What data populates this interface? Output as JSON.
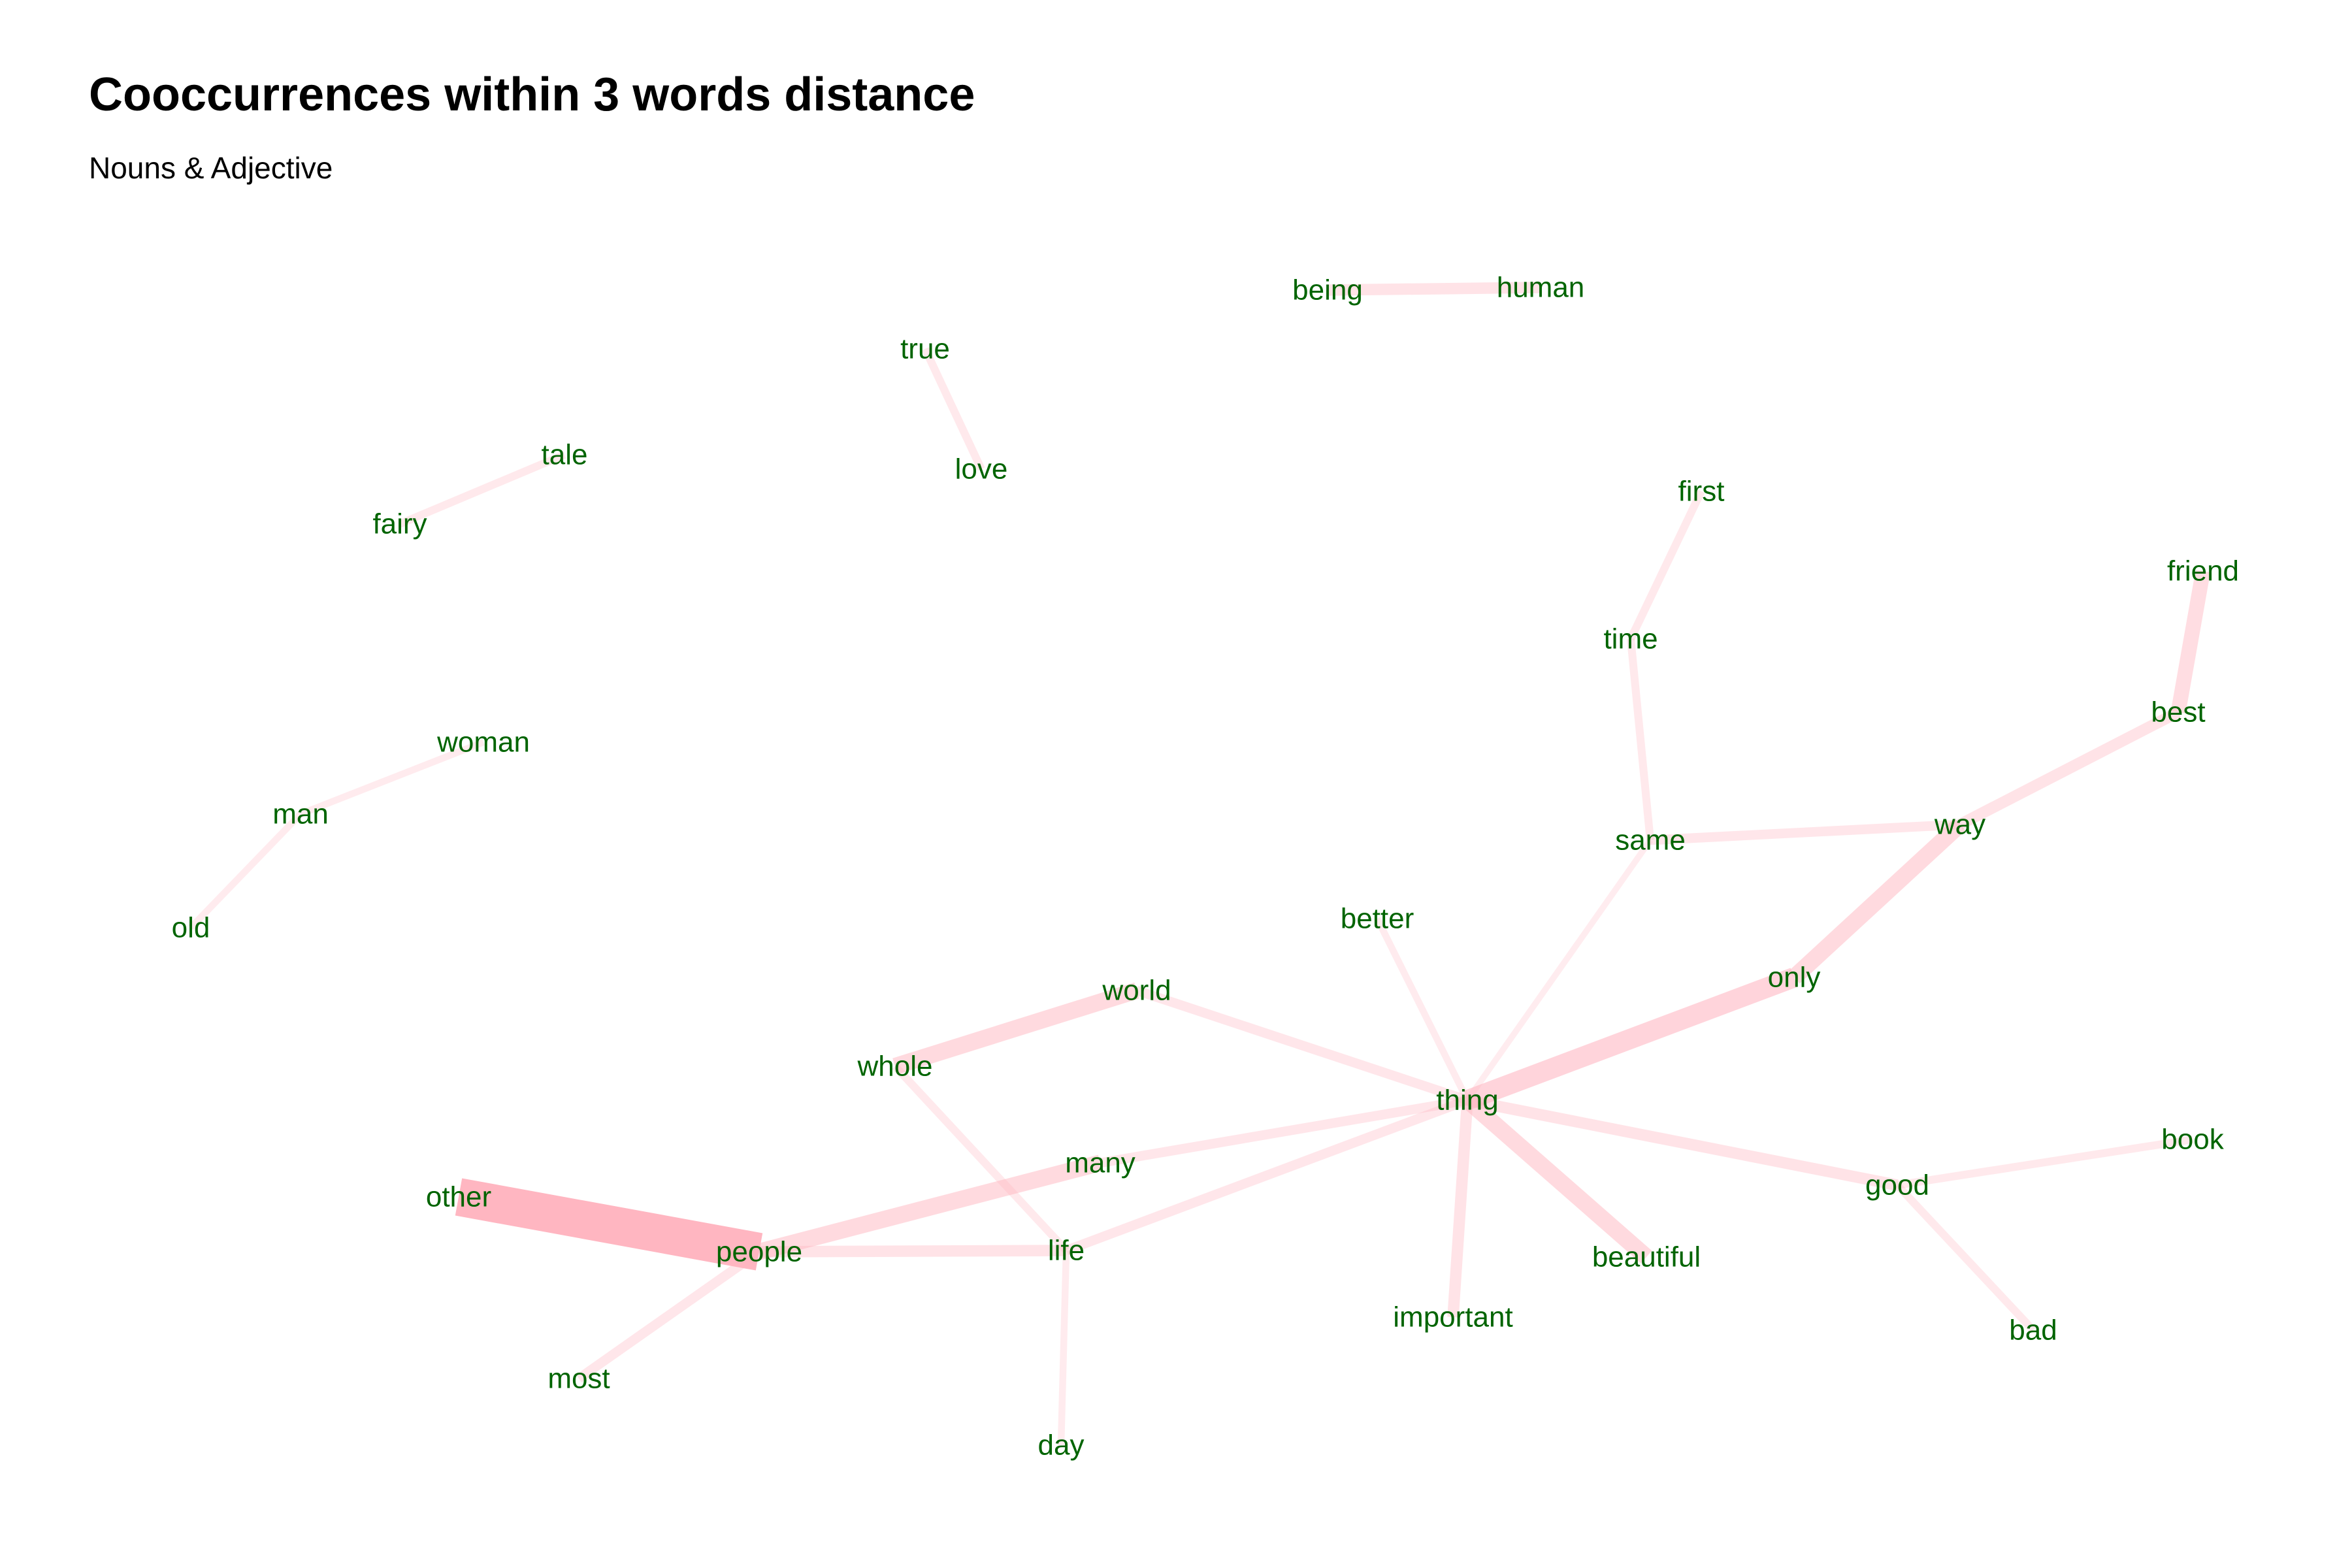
{
  "title": "Cooccurrences within 3 words distance",
  "subtitle": "Nouns & Adjective",
  "colors": {
    "edge": "#ffb6c1",
    "label": "#006400",
    "title": "#000000"
  },
  "nodes": [
    {
      "id": "being"
    },
    {
      "id": "human"
    },
    {
      "id": "true"
    },
    {
      "id": "love"
    },
    {
      "id": "tale"
    },
    {
      "id": "fairy"
    },
    {
      "id": "first"
    },
    {
      "id": "friend"
    },
    {
      "id": "time"
    },
    {
      "id": "best"
    },
    {
      "id": "woman"
    },
    {
      "id": "man"
    },
    {
      "id": "same"
    },
    {
      "id": "way"
    },
    {
      "id": "old"
    },
    {
      "id": "better"
    },
    {
      "id": "only"
    },
    {
      "id": "world"
    },
    {
      "id": "whole"
    },
    {
      "id": "thing"
    },
    {
      "id": "book"
    },
    {
      "id": "many"
    },
    {
      "id": "good"
    },
    {
      "id": "other"
    },
    {
      "id": "people"
    },
    {
      "id": "life"
    },
    {
      "id": "beautiful"
    },
    {
      "id": "important"
    },
    {
      "id": "bad"
    },
    {
      "id": "most"
    },
    {
      "id": "day"
    }
  ],
  "edges": [
    {
      "source": "other",
      "target": "people",
      "weight": 10
    },
    {
      "source": "thing",
      "target": "only",
      "weight": 5
    },
    {
      "source": "people",
      "target": "many",
      "weight": 4
    },
    {
      "source": "whole",
      "target": "world",
      "weight": 4
    },
    {
      "source": "only",
      "target": "way",
      "weight": 4
    },
    {
      "source": "thing",
      "target": "beautiful",
      "weight": 4
    },
    {
      "source": "best",
      "target": "friend",
      "weight": 3.5
    },
    {
      "source": "being",
      "target": "human",
      "weight": 2.5
    },
    {
      "source": "thing",
      "target": "good",
      "weight": 2.5
    },
    {
      "source": "people",
      "target": "life",
      "weight": 2.5
    },
    {
      "source": "way",
      "target": "best",
      "weight": 2.5
    },
    {
      "source": "thing",
      "target": "important",
      "weight": 2.5
    },
    {
      "source": "thing",
      "target": "many",
      "weight": 2
    },
    {
      "source": "thing",
      "target": "life",
      "weight": 2
    },
    {
      "source": "thing",
      "target": "world",
      "weight": 2
    },
    {
      "source": "same",
      "target": "way",
      "weight": 2
    },
    {
      "source": "people",
      "target": "most",
      "weight": 2
    },
    {
      "source": "time",
      "target": "first",
      "weight": 1.5
    },
    {
      "source": "time",
      "target": "same",
      "weight": 1.5
    },
    {
      "source": "good",
      "target": "bad",
      "weight": 1.5
    },
    {
      "source": "good",
      "target": "book",
      "weight": 1.5
    },
    {
      "source": "whole",
      "target": "life",
      "weight": 1.5
    },
    {
      "source": "true",
      "target": "love",
      "weight": 1.5
    },
    {
      "source": "fairy",
      "target": "tale",
      "weight": 1.5
    },
    {
      "source": "man",
      "target": "woman",
      "weight": 1.2
    },
    {
      "source": "man",
      "target": "old",
      "weight": 1.2
    },
    {
      "source": "thing",
      "target": "better",
      "weight": 1.2
    },
    {
      "source": "life",
      "target": "day",
      "weight": 1.2
    },
    {
      "source": "thing",
      "target": "same",
      "weight": 1
    }
  ]
}
